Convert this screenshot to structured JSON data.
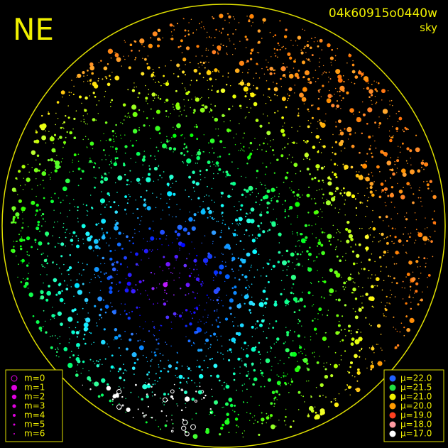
{
  "header": {
    "direction": "NE",
    "image_id": "04k60915o0440w",
    "image_type": "sky"
  },
  "legend_magnitude": {
    "items": [
      "m=0",
      "m=1",
      "m=2",
      "m=3",
      "m=4",
      "m=5",
      "m=6"
    ]
  },
  "legend_brightness": {
    "items": [
      "μ=22.0",
      "μ=21.5",
      "μ=21.0",
      "μ=20.0",
      "μ=19.0",
      "μ=18.0",
      "μ=17.0"
    ]
  }
}
